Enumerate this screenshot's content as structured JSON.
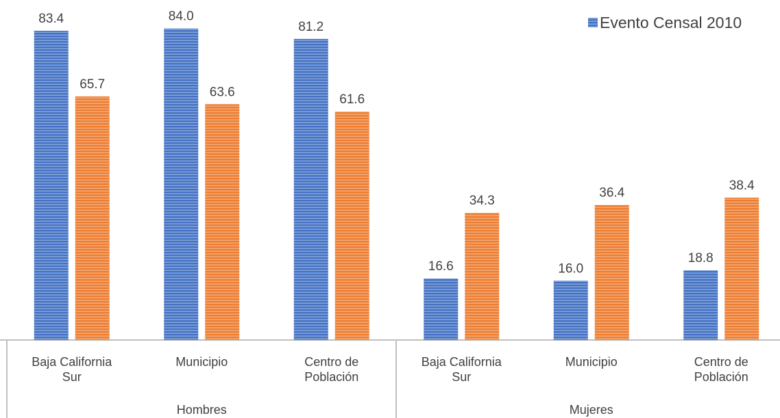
{
  "chart_data": {
    "type": "bar",
    "groups": [
      "Hombres",
      "Mujeres"
    ],
    "categories": [
      "Baja California Sur",
      "Municipio",
      "Centro de Población",
      "Baja California Sur",
      "Municipio",
      "Centro de Población"
    ],
    "series": [
      {
        "name": "Evento Censal 2010",
        "color": "#4472c4",
        "values": [
          83.4,
          84.0,
          81.2,
          16.6,
          16.0,
          18.8
        ],
        "value_labels": [
          "83.4",
          "84.0",
          "81.2",
          "16.6",
          "16.0",
          "18.8"
        ]
      },
      {
        "color": "#ed7d31",
        "values": [
          65.7,
          63.6,
          61.6,
          34.3,
          36.4,
          38.4
        ],
        "value_labels": [
          "65.7",
          "63.6",
          "61.6",
          "34.3",
          "36.4",
          "38.4"
        ]
      }
    ],
    "legend": "top-right"
  }
}
